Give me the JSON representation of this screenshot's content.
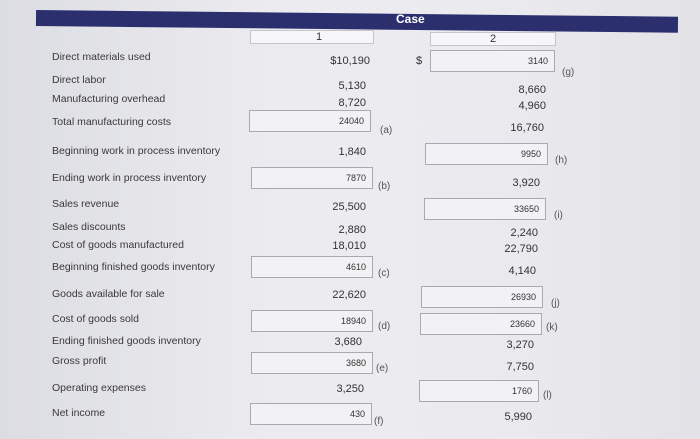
{
  "header": {
    "title": "Case",
    "col1": "1",
    "col2": "2",
    "dollar": "$"
  },
  "rows": [
    {
      "id": "dm",
      "label": "Direct materials used"
    },
    {
      "id": "dl",
      "label": "Direct labor"
    },
    {
      "id": "moh",
      "label": "Manufacturing overhead"
    },
    {
      "id": "tmc",
      "label": "Total manufacturing costs"
    },
    {
      "id": "bwip",
      "label": "Beginning work in process inventory"
    },
    {
      "id": "ewip",
      "label": "Ending work in process inventory"
    },
    {
      "id": "rev",
      "label": "Sales revenue"
    },
    {
      "id": "disc",
      "label": "Sales discounts"
    },
    {
      "id": "cogm",
      "label": "Cost of goods manufactured"
    },
    {
      "id": "bfg",
      "label": "Beginning finished goods inventory"
    },
    {
      "id": "gafs",
      "label": "Goods available for sale"
    },
    {
      "id": "cogs",
      "label": "Cost of goods sold"
    },
    {
      "id": "efg",
      "label": "Ending finished goods inventory"
    },
    {
      "id": "gp",
      "label": "Gross profit"
    },
    {
      "id": "opex",
      "label": "Operating expenses"
    },
    {
      "id": "ni",
      "label": "Net income"
    }
  ],
  "case1": {
    "dm": "$10,190",
    "dl": "5,130",
    "moh": "8,720",
    "tmc": "24040",
    "bwip": "1,840",
    "ewip": "7870",
    "rev": "25,500",
    "disc": "2,880",
    "cogm": "18,010",
    "bfg": "4610",
    "gafs": "22,620",
    "cogs": "18940",
    "efg": "3,680",
    "gp": "3680",
    "opex": "3,250",
    "ni": "430"
  },
  "case2": {
    "dm": "3140",
    "dl": "8,660",
    "moh": "4,960",
    "tmc": "16,760",
    "bwip": "9950",
    "ewip": "3,920",
    "rev": "33650",
    "disc": "2,240",
    "cogm": "22,790",
    "bfg": "4,140",
    "gafs": "26930",
    "cogs": "23660",
    "efg": "3,270",
    "gp": "7,750",
    "opex": "1760",
    "ni": "5,990"
  },
  "marks": {
    "a": "(a)",
    "b": "(b)",
    "c": "(c)",
    "d": "(d)",
    "e": "(e)",
    "f": "(f)",
    "g": "(g)",
    "h": "(h)",
    "i": "(i)",
    "j": "(j)",
    "k": "(k)",
    "l": "(l)"
  }
}
